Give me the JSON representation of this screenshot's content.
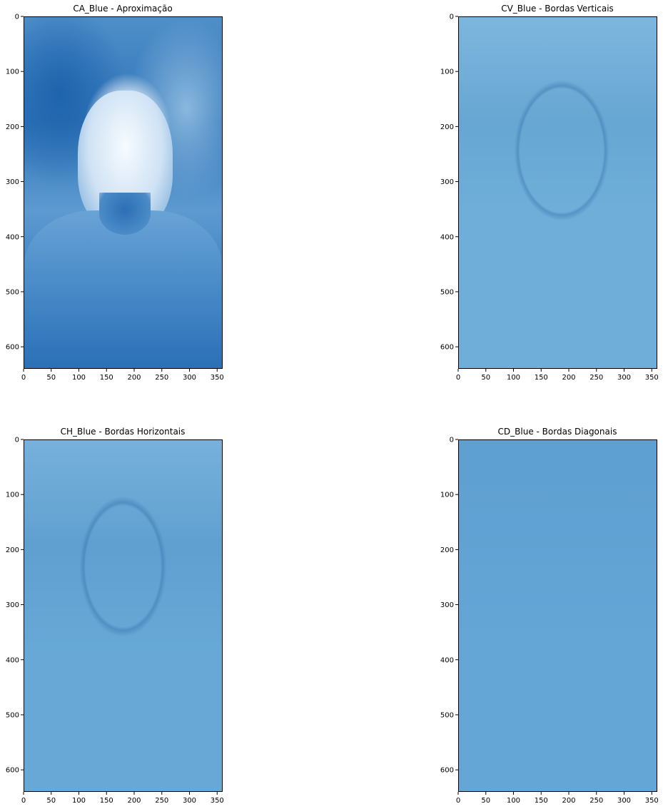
{
  "chart_data": [
    {
      "type": "heatmap",
      "title": "CA_Blue - Aproximação",
      "colormap": "Blues",
      "xlim": [
        0,
        360
      ],
      "ylim": [
        640,
        0
      ],
      "xticks": [
        0,
        50,
        100,
        150,
        200,
        250,
        300,
        350
      ],
      "yticks": [
        0,
        100,
        200,
        300,
        400,
        500,
        600
      ]
    },
    {
      "type": "heatmap",
      "title": "CV_Blue - Bordas Verticais",
      "colormap": "Blues",
      "xlim": [
        0,
        360
      ],
      "ylim": [
        640,
        0
      ],
      "xticks": [
        0,
        50,
        100,
        150,
        200,
        250,
        300,
        350
      ],
      "yticks": [
        0,
        100,
        200,
        300,
        400,
        500,
        600
      ]
    },
    {
      "type": "heatmap",
      "title": "CH_Blue - Bordas Horizontais",
      "colormap": "Blues",
      "xlim": [
        0,
        360
      ],
      "ylim": [
        640,
        0
      ],
      "xticks": [
        0,
        50,
        100,
        150,
        200,
        250,
        300,
        350
      ],
      "yticks": [
        0,
        100,
        200,
        300,
        400,
        500,
        600
      ]
    },
    {
      "type": "heatmap",
      "title": "CD_Blue - Bordas Diagonais",
      "colormap": "Blues",
      "xlim": [
        0,
        360
      ],
      "ylim": [
        640,
        0
      ],
      "xticks": [
        0,
        50,
        100,
        150,
        200,
        250,
        300,
        350
      ],
      "yticks": [
        0,
        100,
        200,
        300,
        400,
        500,
        600
      ]
    }
  ]
}
